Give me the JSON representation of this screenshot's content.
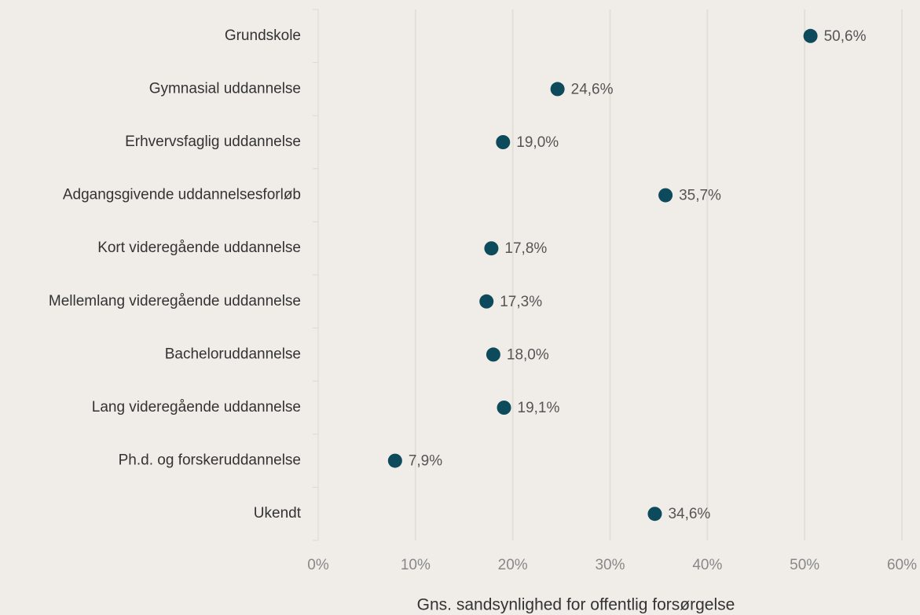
{
  "chart_data": {
    "type": "dot",
    "x_label": "Gns. sandsynlighed for offentlig forsørgelse",
    "categories": [
      "Grundskole",
      "Gymnasial uddannelse",
      "Erhvervsfaglig uddannelse",
      "Adgangsgivende uddannelsesforløb",
      "Kort videregående uddannelse",
      "Mellemlang videregående uddannelse",
      "Bacheloruddannelse",
      "Lang videregående uddannelse",
      "Ph.d. og forskeruddannelse",
      "Ukendt"
    ],
    "values": [
      50.6,
      24.6,
      19.0,
      35.7,
      17.8,
      17.3,
      18.0,
      19.1,
      7.9,
      34.6
    ],
    "value_labels": [
      "50,6%",
      "24,6%",
      "19,0%",
      "35,7%",
      "17,8%",
      "17,3%",
      "18,0%",
      "19,1%",
      "7,9%",
      "34,6%"
    ],
    "color": "#0d4a5c",
    "xlim": [
      0,
      60
    ],
    "xticks": [
      {
        "value": 0,
        "label": "0%"
      },
      {
        "value": 10,
        "label": "10%"
      },
      {
        "value": 20,
        "label": "20%"
      },
      {
        "value": 30,
        "label": "30%"
      },
      {
        "value": 40,
        "label": "40%"
      },
      {
        "value": 50,
        "label": "50%"
      },
      {
        "value": 60,
        "label": "60%"
      }
    ],
    "grid": true
  }
}
